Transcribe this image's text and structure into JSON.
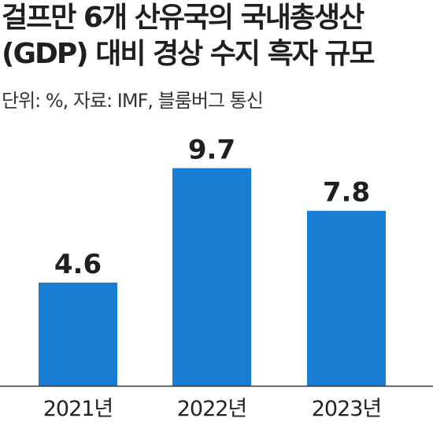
{
  "title_line1": "걸프만 6개 산유국의 국내총생산",
  "title_line2": "(GDP) 대비 경상 수지 흑자 규모",
  "source_note": "단위: %, 자료: IMF, 블룸버그 통신",
  "colors": {
    "bar": "#1a7fd4",
    "axis": "#333333",
    "text": "#222222"
  },
  "chart_data": {
    "type": "bar",
    "categories": [
      "2021년",
      "2022년",
      "2023년"
    ],
    "values": [
      4.6,
      9.7,
      7.8
    ],
    "data_labels": [
      "4.6",
      "9.7",
      "7.8"
    ],
    "title": "걸프만 6개 산유국의 국내총생산 (GDP) 대비 경상 수지 흑자 규모",
    "ylabel": "",
    "xlabel": "",
    "unit": "%",
    "ylim": [
      0,
      10
    ],
    "grid": false,
    "legend": "none"
  }
}
